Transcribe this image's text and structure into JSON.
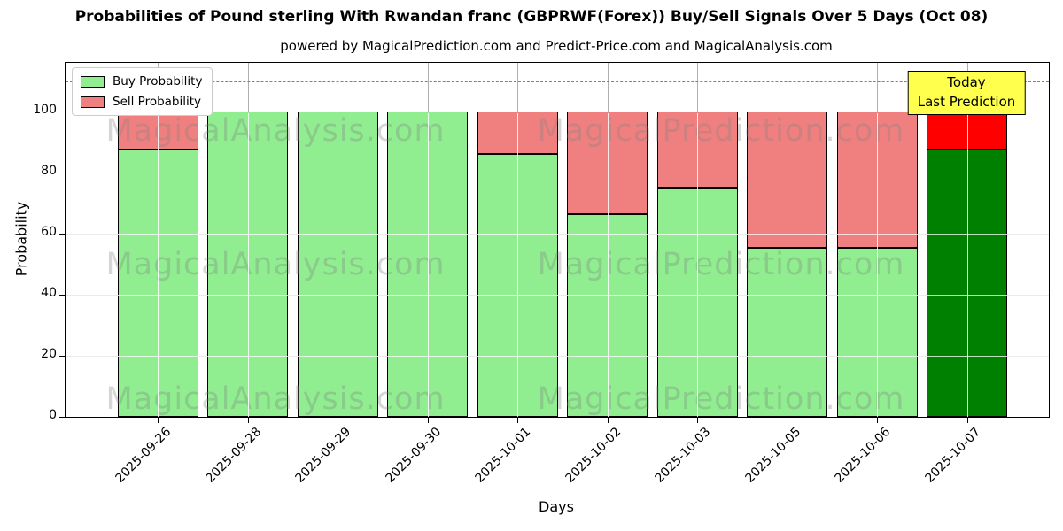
{
  "title": "Probabilities of Pound sterling With Rwandan franc (GBPRWF(Forex)) Buy/Sell Signals Over 5 Days (Oct 08)",
  "subtitle": "powered by MagicalPrediction.com and Predict-Price.com and MagicalAnalysis.com",
  "annotation_box": {
    "line1": "Today",
    "line2": "Last Prediction"
  },
  "watermarks": {
    "left": "MagicalAnalysis.com",
    "right": "MagicalPrediction.com"
  },
  "colors": {
    "buy": "#90ee90",
    "sell": "#f08080",
    "today_buy": "#008000",
    "today_sell": "#ff0000",
    "bar_edge": "#000000",
    "annotation_bg": "#ffff4d",
    "grid": "#b0b0b0",
    "dashed_line": "#808080"
  },
  "chart_data": {
    "type": "bar",
    "stacked": true,
    "title": "Probabilities of Pound sterling With Rwandan franc (GBPRWF(Forex)) Buy/Sell Signals Over 5 Days (Oct 08)",
    "xlabel": "Days",
    "ylabel": "Probability",
    "categories": [
      "2025-09-26",
      "2025-09-28",
      "2025-09-29",
      "2025-09-30",
      "2025-10-01",
      "2025-10-02",
      "2025-10-03",
      "2025-10-05",
      "2025-10-06",
      "2025-10-07"
    ],
    "series": [
      {
        "name": "Buy Probability",
        "values": [
          87.5,
          100,
          100,
          100,
          86,
          66.5,
          75,
          55.5,
          55.5,
          87.5
        ]
      },
      {
        "name": "Sell Probability",
        "values": [
          12.5,
          0,
          0,
          0,
          14,
          33.5,
          25,
          44.5,
          44.5,
          12.5
        ]
      }
    ],
    "ylim": [
      0,
      116
    ],
    "yticks": [
      0,
      20,
      40,
      60,
      80,
      100
    ],
    "dashed_line_y": 110,
    "grid": true,
    "legend_position": "upper left",
    "today_index": 9,
    "today_annotation": "Today / Last Prediction"
  }
}
